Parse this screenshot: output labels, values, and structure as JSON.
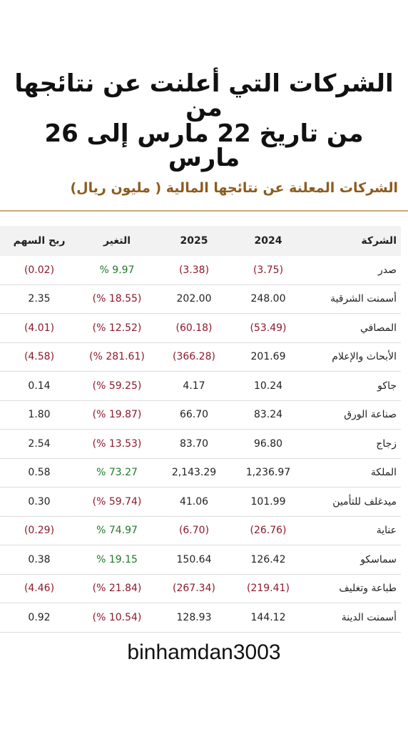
{
  "title": {
    "line1": "الشركات التي أعلنت عن نتائجها من",
    "line2": "من تاريخ 22 مارس إلى 26 مارس"
  },
  "subtitle": "الشركات المعلنة عن نتائجها المالية ( مليون ريال)",
  "table": {
    "headers": {
      "company": "الشركة",
      "y2024": "2024",
      "y2025": "2025",
      "change": "التغير",
      "eps": "ربح السهم"
    },
    "rows": [
      {
        "company": "صدر",
        "y2024": "(3.75)",
        "y2025": "(3.38)",
        "change": "% 9.97",
        "eps": "(0.02)",
        "c2024": "neg",
        "c2025": "neg",
        "cchg": "pos",
        "ceps": "neg"
      },
      {
        "company": "أسمنت الشرقية",
        "y2024": "248.00",
        "y2025": "202.00",
        "change": "(% 18.55)",
        "eps": "2.35",
        "c2024": "",
        "c2025": "",
        "cchg": "neg",
        "ceps": ""
      },
      {
        "company": "المصافي",
        "y2024": "(53.49)",
        "y2025": "(60.18)",
        "change": "(% 12.52)",
        "eps": "(4.01)",
        "c2024": "neg",
        "c2025": "neg",
        "cchg": "neg",
        "ceps": "neg"
      },
      {
        "company": "الأبحاث والإعلام",
        "y2024": "201.69",
        "y2025": "(366.28)",
        "change": "(% 281.61)",
        "eps": "(4.58)",
        "c2024": "",
        "c2025": "neg",
        "cchg": "neg",
        "ceps": "neg"
      },
      {
        "company": "جاكو",
        "y2024": "10.24",
        "y2025": "4.17",
        "change": "(% 59.25)",
        "eps": "0.14",
        "c2024": "",
        "c2025": "",
        "cchg": "neg",
        "ceps": ""
      },
      {
        "company": "صناعة الورق",
        "y2024": "83.24",
        "y2025": "66.70",
        "change": "(% 19.87)",
        "eps": "1.80",
        "c2024": "",
        "c2025": "",
        "cchg": "neg",
        "ceps": ""
      },
      {
        "company": "زجاج",
        "y2024": "96.80",
        "y2025": "83.70",
        "change": "(% 13.53)",
        "eps": "2.54",
        "c2024": "",
        "c2025": "",
        "cchg": "neg",
        "ceps": ""
      },
      {
        "company": "الملكة",
        "y2024": "1,236.97",
        "y2025": "2,143.29",
        "change": "% 73.27",
        "eps": "0.58",
        "c2024": "",
        "c2025": "",
        "cchg": "pos",
        "ceps": ""
      },
      {
        "company": "ميدغلف للتأمين",
        "y2024": "101.99",
        "y2025": "41.06",
        "change": "(% 59.74)",
        "eps": "0.30",
        "c2024": "",
        "c2025": "",
        "cchg": "neg",
        "ceps": ""
      },
      {
        "company": "عناية",
        "y2024": "(26.76)",
        "y2025": "(6.70)",
        "change": "% 74.97",
        "eps": "(0.29)",
        "c2024": "neg",
        "c2025": "neg",
        "cchg": "pos",
        "ceps": "neg"
      },
      {
        "company": "سماسكو",
        "y2024": "126.42",
        "y2025": "150.64",
        "change": "% 19.15",
        "eps": "0.38",
        "c2024": "",
        "c2025": "",
        "cchg": "pos",
        "ceps": ""
      },
      {
        "company": "طباعة وتغليف",
        "y2024": "(219.41)",
        "y2025": "(267.34)",
        "change": "(% 21.84)",
        "eps": "(4.46)",
        "c2024": "neg",
        "c2025": "neg",
        "cchg": "neg",
        "ceps": "neg"
      },
      {
        "company": "أسمنت الدينة",
        "y2024": "144.12",
        "y2025": "128.93",
        "change": "(% 10.54)",
        "eps": "0.92",
        "c2024": "",
        "c2025": "",
        "cchg": "neg",
        "ceps": ""
      }
    ]
  },
  "footer": "binhamdan3003",
  "colors": {
    "negative": "#8b1a2b",
    "positive": "#1f7a2a",
    "subtitle": "#8d5b1f",
    "rule": "#c9a978"
  }
}
